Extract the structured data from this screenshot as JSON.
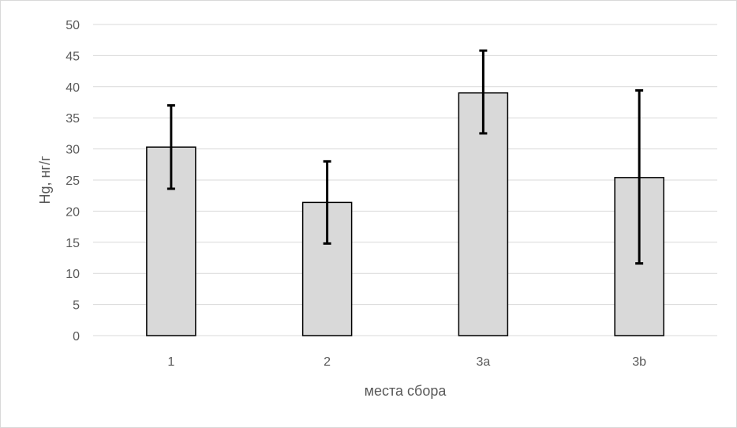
{
  "chart_data": {
    "type": "bar",
    "categories": [
      "1",
      "2",
      "3a",
      "3b"
    ],
    "values": [
      30.3,
      21.4,
      39.0,
      25.4
    ],
    "error_low": [
      23.6,
      14.8,
      32.5,
      11.6
    ],
    "error_high": [
      37.0,
      28.0,
      45.8,
      39.4
    ],
    "xlabel": "места сбора",
    "ylabel": "Hg, нг/г",
    "ylim": [
      0,
      50
    ],
    "yticks": [
      0,
      5,
      10,
      15,
      20,
      25,
      30,
      35,
      40,
      45,
      50
    ],
    "grid": true,
    "bar_color": "#d9d9d9",
    "edge_color": "#000000",
    "grid_color": "#d9d9d9"
  }
}
